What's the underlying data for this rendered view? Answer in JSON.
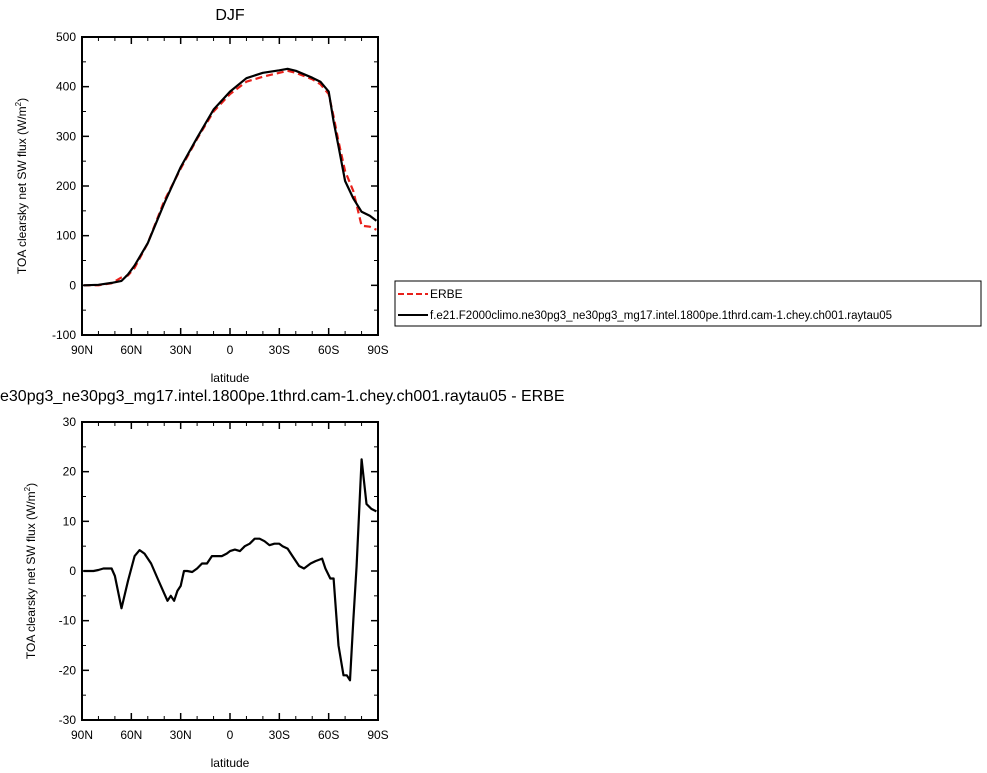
{
  "chart_data": [
    {
      "type": "line",
      "title": "DJF",
      "xlabel": "latitude",
      "ylabel": "TOA clearsky net SW flux (W/m",
      "ylabel_sup": "2",
      "ylabel_end": ")",
      "xlim": [
        90,
        -90
      ],
      "ylim": [
        -100,
        500
      ],
      "xticks": [
        {
          "value": 90,
          "label": "90N"
        },
        {
          "value": 60,
          "label": "60N"
        },
        {
          "value": 30,
          "label": "30N"
        },
        {
          "value": 0,
          "label": "0"
        },
        {
          "value": -30,
          "label": "30S"
        },
        {
          "value": -60,
          "label": "60S"
        },
        {
          "value": -90,
          "label": "90S"
        }
      ],
      "yticks": [
        {
          "value": -100,
          "label": "-100"
        },
        {
          "value": 0,
          "label": "0"
        },
        {
          "value": 100,
          "label": "100"
        },
        {
          "value": 200,
          "label": "200"
        },
        {
          "value": 300,
          "label": "300"
        },
        {
          "value": 400,
          "label": "400"
        },
        {
          "value": 500,
          "label": "500"
        }
      ],
      "legend": {
        "placement": "right",
        "entries": [
          "ERBE",
          "f.e21.F2000climo.ne30pg3_ne30pg3_mg17.intel.1800pe.1thrd.cam-1.chey.ch001.raytau05"
        ]
      },
      "series": [
        {
          "name": "ERBE",
          "color": "#e8201a",
          "dash": "dashed",
          "x": [
            89,
            80,
            72,
            66,
            62,
            58,
            50,
            40,
            30,
            20,
            10,
            0,
            -10,
            -20,
            -30,
            -35,
            -40,
            -50,
            -55,
            -60,
            -63,
            -66,
            -70,
            -75,
            -80,
            -85,
            -89
          ],
          "y": [
            0,
            0,
            4,
            16,
            20,
            35,
            85,
            170,
            235,
            295,
            350,
            385,
            410,
            420,
            428,
            432,
            428,
            415,
            405,
            385,
            340,
            290,
            230,
            190,
            120,
            118,
            112
          ]
        },
        {
          "name": "f.e21.F2000climo.ne30pg3_ne30pg3_mg17.intel.1800pe.1thrd.cam-1.chey.ch001.raytau05",
          "color": "#000000",
          "dash": "solid",
          "x": [
            89,
            80,
            72,
            66,
            62,
            58,
            50,
            40,
            30,
            20,
            10,
            0,
            -10,
            -20,
            -30,
            -35,
            -40,
            -50,
            -55,
            -60,
            -63,
            -66,
            -70,
            -75,
            -80,
            -85,
            -89
          ],
          "y": [
            0,
            1,
            5,
            9,
            22,
            40,
            85,
            165,
            238,
            297,
            354,
            390,
            417,
            428,
            433,
            436,
            432,
            418,
            410,
            390,
            330,
            280,
            210,
            175,
            148,
            140,
            130
          ]
        }
      ]
    },
    {
      "type": "line",
      "title": "e30pg3_ne30pg3_mg17.intel.1800pe.1thrd.cam-1.chey.ch001.raytau05 - ERBE",
      "xlabel": "latitude",
      "ylabel": "TOA clearsky net SW flux (W/m",
      "ylabel_sup": "2",
      "ylabel_end": ")",
      "xlim": [
        90,
        -90
      ],
      "ylim": [
        -30,
        30
      ],
      "xticks": [
        {
          "value": 90,
          "label": "90N"
        },
        {
          "value": 60,
          "label": "60N"
        },
        {
          "value": 30,
          "label": "30N"
        },
        {
          "value": 0,
          "label": "0"
        },
        {
          "value": -30,
          "label": "30S"
        },
        {
          "value": -60,
          "label": "60S"
        },
        {
          "value": -90,
          "label": "90S"
        }
      ],
      "yticks": [
        {
          "value": -30,
          "label": "-30"
        },
        {
          "value": -20,
          "label": "-20"
        },
        {
          "value": -10,
          "label": "-10"
        },
        {
          "value": 0,
          "label": "0"
        },
        {
          "value": 10,
          "label": "10"
        },
        {
          "value": 20,
          "label": "20"
        },
        {
          "value": 30,
          "label": "30"
        }
      ],
      "series": [
        {
          "color": "#000000",
          "dash": "solid",
          "x": [
            89,
            86,
            83,
            80,
            77,
            72,
            70,
            66,
            62,
            58,
            55,
            52,
            48,
            44,
            40,
            38,
            36,
            34,
            32,
            30,
            28,
            26,
            23,
            20,
            17,
            14,
            11,
            8,
            5,
            2,
            0,
            -3,
            -6,
            -9,
            -12,
            -15,
            -18,
            -21,
            -24,
            -27,
            -30,
            -32,
            -35,
            -38,
            -42,
            -45,
            -49,
            -52,
            -56,
            -58,
            -61,
            -63,
            -66,
            -69,
            -71,
            -73,
            -75,
            -77,
            -80,
            -83,
            -86,
            -89
          ],
          "y": [
            0,
            0,
            0,
            0.2,
            0.5,
            0.5,
            -1,
            -7.5,
            -2,
            3,
            4.2,
            3.5,
            1.5,
            -1.5,
            -4.5,
            -6,
            -5,
            -6,
            -4,
            -3,
            0,
            0,
            -0.2,
            0.5,
            1.5,
            1.5,
            3,
            3,
            3,
            3.5,
            4,
            4.3,
            4,
            5,
            5.5,
            6.5,
            6.5,
            6,
            5.2,
            5.5,
            5.5,
            5,
            4.5,
            3,
            1,
            0.5,
            1.5,
            2,
            2.5,
            0.5,
            -1.5,
            -1.5,
            -15,
            -21,
            -21,
            -22,
            -10,
            1,
            22.5,
            13.5,
            12.5,
            12
          ]
        }
      ]
    }
  ]
}
